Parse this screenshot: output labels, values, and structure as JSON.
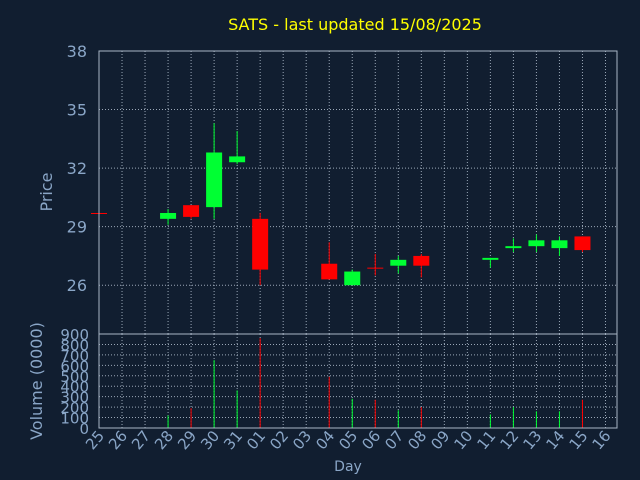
{
  "title": "SATS - last updated 15/08/2025",
  "colors": {
    "background": "#111e30",
    "title": "#ffff00",
    "axis_text": "#8aa6c7",
    "grid": "#a9b6c6",
    "up": "#00ff33",
    "down": "#ff0000"
  },
  "chart_data": [
    {
      "type": "candlestick",
      "ylabel": "Price",
      "ylim": [
        23.5,
        38
      ],
      "yticks": [
        "38",
        "35",
        "32",
        "29",
        "26"
      ],
      "ytick_values": [
        38,
        35,
        32,
        29,
        26
      ],
      "grid": true,
      "categories": [
        "25",
        "26",
        "27",
        "28",
        "29",
        "30",
        "31",
        "01",
        "02",
        "03",
        "04",
        "05",
        "06",
        "07",
        "08",
        "09",
        "10",
        "11",
        "12",
        "13",
        "14",
        "15",
        "16"
      ],
      "candles": [
        {
          "day": "25",
          "open": 29.7,
          "high": 29.7,
          "low": 29.7,
          "close": 29.7,
          "dir": "down"
        },
        {
          "day": "28",
          "open": 29.4,
          "high": 29.9,
          "low": 29.1,
          "close": 29.7,
          "dir": "up"
        },
        {
          "day": "29",
          "open": 30.1,
          "high": 30.1,
          "low": 29.4,
          "close": 29.5,
          "dir": "down"
        },
        {
          "day": "30",
          "open": 30.0,
          "high": 34.3,
          "low": 29.4,
          "close": 32.8,
          "dir": "up"
        },
        {
          "day": "31",
          "open": 32.3,
          "high": 33.9,
          "low": 32.2,
          "close": 32.6,
          "dir": "up"
        },
        {
          "day": "01",
          "open": 29.4,
          "high": 29.7,
          "low": 26.0,
          "close": 26.8,
          "dir": "down"
        },
        {
          "day": "04",
          "open": 27.1,
          "high": 28.2,
          "low": 26.3,
          "close": 26.3,
          "dir": "down"
        },
        {
          "day": "05",
          "open": 26.0,
          "high": 26.8,
          "low": 26.0,
          "close": 26.7,
          "dir": "up"
        },
        {
          "day": "06",
          "open": 26.9,
          "high": 27.6,
          "low": 26.5,
          "close": 26.9,
          "dir": "down"
        },
        {
          "day": "07",
          "open": 27.0,
          "high": 27.5,
          "low": 26.6,
          "close": 27.3,
          "dir": "up"
        },
        {
          "day": "08",
          "open": 27.5,
          "high": 27.6,
          "low": 26.4,
          "close": 27.0,
          "dir": "down"
        },
        {
          "day": "11",
          "open": 27.3,
          "high": 27.4,
          "low": 26.9,
          "close": 27.4,
          "dir": "up"
        },
        {
          "day": "12",
          "open": 27.9,
          "high": 28.4,
          "low": 27.7,
          "close": 28.0,
          "dir": "up"
        },
        {
          "day": "13",
          "open": 28.0,
          "high": 28.6,
          "low": 27.7,
          "close": 28.3,
          "dir": "up"
        },
        {
          "day": "14",
          "open": 27.9,
          "high": 28.5,
          "low": 27.5,
          "close": 28.3,
          "dir": "up"
        },
        {
          "day": "15",
          "open": 28.5,
          "high": 28.5,
          "low": 27.7,
          "close": 27.8,
          "dir": "down"
        }
      ]
    },
    {
      "type": "bar",
      "ylabel": "Volume (0000)",
      "xlabel": "Day",
      "ylim": [
        0,
        900
      ],
      "yticks": [
        "900",
        "800",
        "700",
        "600",
        "500",
        "400",
        "300",
        "200",
        "100",
        "0"
      ],
      "ytick_values": [
        900,
        800,
        700,
        600,
        500,
        400,
        300,
        200,
        100,
        0
      ],
      "grid": true,
      "categories": [
        "25",
        "26",
        "27",
        "28",
        "29",
        "30",
        "31",
        "01",
        "02",
        "03",
        "04",
        "05",
        "06",
        "07",
        "08",
        "09",
        "10",
        "11",
        "12",
        "13",
        "14",
        "15",
        "16"
      ],
      "bars": [
        {
          "day": "25",
          "value": 0,
          "dir": "down"
        },
        {
          "day": "28",
          "value": 120,
          "dir": "up"
        },
        {
          "day": "29",
          "value": 190,
          "dir": "down"
        },
        {
          "day": "30",
          "value": 650,
          "dir": "up"
        },
        {
          "day": "31",
          "value": 360,
          "dir": "up"
        },
        {
          "day": "01",
          "value": 860,
          "dir": "down"
        },
        {
          "day": "04",
          "value": 490,
          "dir": "down"
        },
        {
          "day": "05",
          "value": 280,
          "dir": "up"
        },
        {
          "day": "06",
          "value": 270,
          "dir": "down"
        },
        {
          "day": "07",
          "value": 170,
          "dir": "up"
        },
        {
          "day": "08",
          "value": 200,
          "dir": "down"
        },
        {
          "day": "11",
          "value": 130,
          "dir": "up"
        },
        {
          "day": "12",
          "value": 200,
          "dir": "up"
        },
        {
          "day": "13",
          "value": 160,
          "dir": "up"
        },
        {
          "day": "14",
          "value": 160,
          "dir": "up"
        },
        {
          "day": "15",
          "value": 270,
          "dir": "down"
        }
      ]
    }
  ]
}
